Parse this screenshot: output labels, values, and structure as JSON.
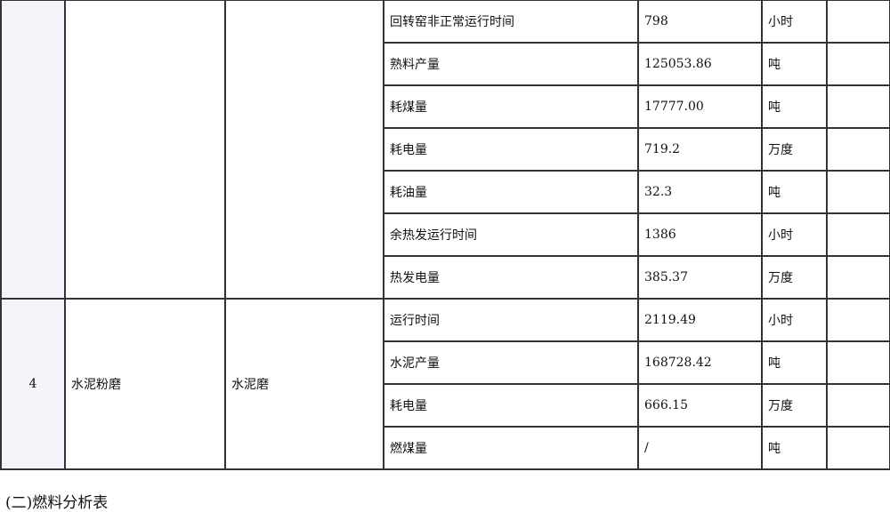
{
  "groups": [
    {
      "index": "",
      "process": "",
      "equipment": "",
      "items": [
        {
          "name": "回转窑非正常运行时间",
          "value": "798",
          "unit": "小时",
          "note": ""
        },
        {
          "name": "熟料产量",
          "value": "125053.86",
          "unit": "吨",
          "note": ""
        },
        {
          "name": "耗煤量",
          "value": "17777.00",
          "unit": "吨",
          "note": ""
        },
        {
          "name": "耗电量",
          "value": "719.2",
          "unit": "万度",
          "note": ""
        },
        {
          "name": "耗油量",
          "value": "32.3",
          "unit": "吨",
          "note": ""
        },
        {
          "name": "余热发运行时间",
          "value": "1386",
          "unit": "小时",
          "note": ""
        },
        {
          "name": "热发电量",
          "value": "385.37",
          "unit": "万度",
          "note": ""
        }
      ]
    },
    {
      "index": "4",
      "process": "水泥粉磨",
      "equipment": "水泥磨",
      "items": [
        {
          "name": "运行时间",
          "value": "2119.49",
          "unit": "小时",
          "note": ""
        },
        {
          "name": "水泥产量",
          "value": "168728.42",
          "unit": "吨",
          "note": ""
        },
        {
          "name": "耗电量",
          "value": "666.15",
          "unit": "万度",
          "note": ""
        },
        {
          "name": "燃煤量",
          "value": "/",
          "unit": "吨",
          "note": ""
        }
      ]
    }
  ],
  "caption": "(二)燃料分析表"
}
